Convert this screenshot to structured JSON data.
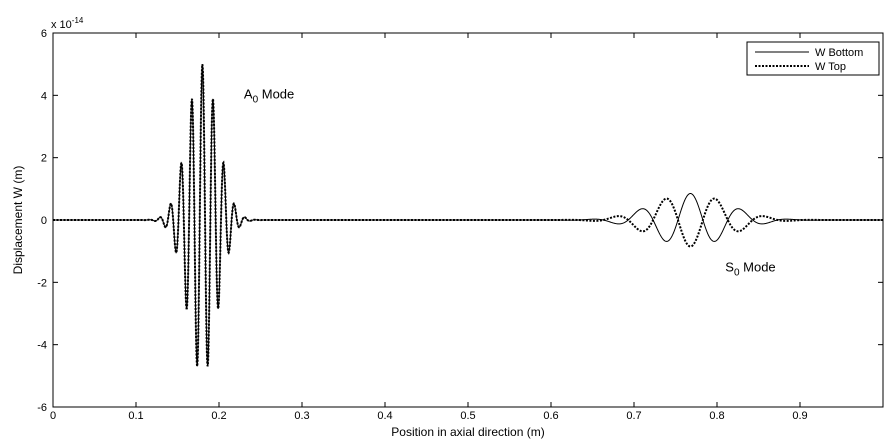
{
  "chart_data": {
    "type": "line",
    "title": "",
    "xlabel": "Position in axial direction (m)",
    "ylabel": "Displacement W (m)",
    "xlim": [
      0,
      1.0
    ],
    "ylim": [
      -6,
      6
    ],
    "y_multiplier": "x 10",
    "y_multiplier_exponent": "-14",
    "xticks": [
      0,
      0.1,
      0.2,
      0.3,
      0.4,
      0.5,
      0.6,
      0.7,
      0.8,
      0.9
    ],
    "xtick_labels": [
      "0",
      "0.1",
      "0.2",
      "0.3",
      "0.4",
      "0.5",
      "0.6",
      "0.7",
      "0.8",
      "0.9"
    ],
    "yticks": [
      -6,
      -4,
      -2,
      0,
      2,
      4,
      6
    ],
    "ytick_labels": [
      "-6",
      "-4",
      "-2",
      "0",
      "2",
      "4",
      "6"
    ],
    "grid": false,
    "legend_position": "top-right",
    "series": [
      {
        "name": "W Bottom",
        "style": "solid",
        "color": "#000000",
        "packets": [
          {
            "center": 0.18,
            "amplitude": 5.0,
            "period": 0.0128,
            "sigma": 0.018,
            "phase": 0
          },
          {
            "center": 0.768,
            "amplitude": 0.85,
            "period": 0.06,
            "sigma": 0.045,
            "phase": 0
          }
        ]
      },
      {
        "name": "W Top",
        "style": "dotted",
        "color": "#000000",
        "packets": [
          {
            "center": 0.18,
            "amplitude": 5.0,
            "period": 0.0128,
            "sigma": 0.018,
            "phase": 0
          },
          {
            "center": 0.768,
            "amplitude": 0.85,
            "period": 0.06,
            "sigma": 0.045,
            "phase": 3.14159
          }
        ]
      }
    ],
    "annotations": [
      {
        "main": "A",
        "sub": "0",
        "rest": " Mode",
        "x": 0.23,
        "y": 3.9
      },
      {
        "main": "S",
        "sub": "0",
        "rest": " Mode",
        "x": 0.81,
        "y": -1.65
      }
    ]
  }
}
